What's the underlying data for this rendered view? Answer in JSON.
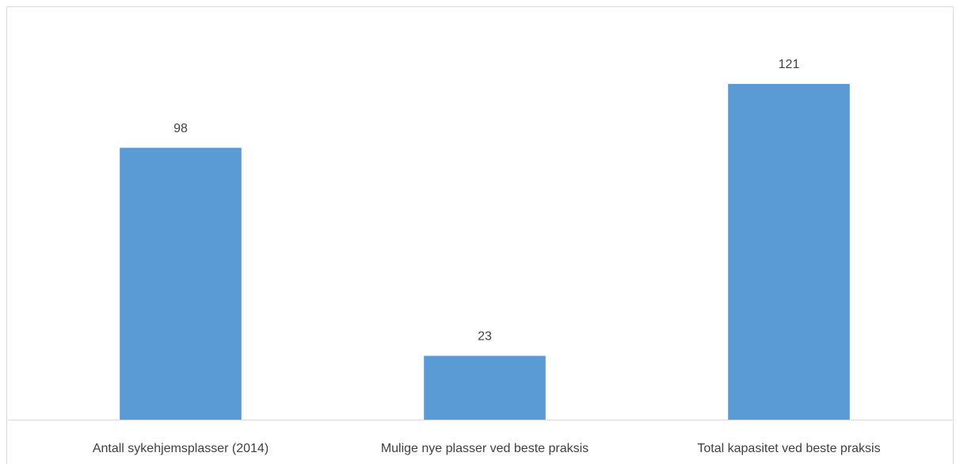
{
  "chart_data": {
    "type": "bar",
    "categories": [
      "Antall sykehjemsplasser (2014)",
      "Mulige nye plasser ved beste praksis",
      "Total kapasitet ved beste praksis"
    ],
    "values": [
      98,
      23,
      121
    ],
    "color": "#5b9bd5",
    "ylim": [
      0,
      140
    ],
    "grid": false
  }
}
